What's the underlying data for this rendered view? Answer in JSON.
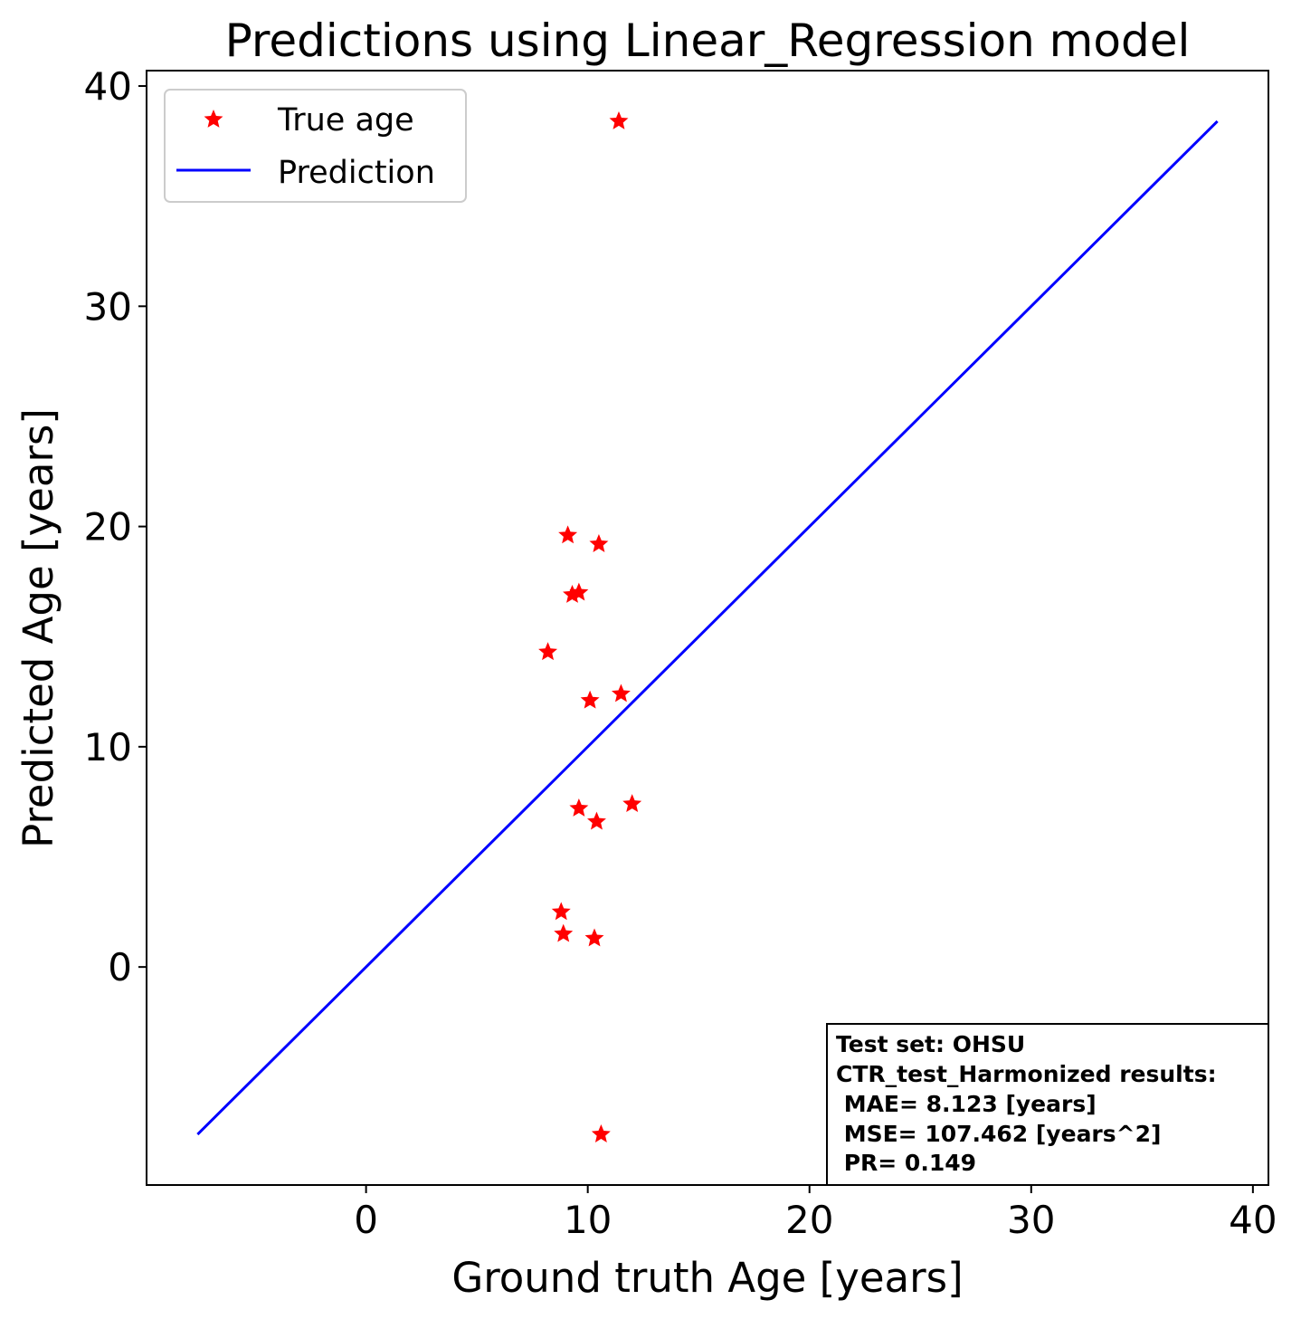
{
  "chart_data": {
    "type": "scatter",
    "title": "Predictions using Linear_Regression model",
    "xlabel": "Ground truth Age [years]",
    "ylabel": "Predicted Age [years]",
    "xlim": [
      -9.9,
      40.7
    ],
    "ylim": [
      -9.9,
      40.7
    ],
    "xticks": [
      "0",
      "10",
      "20",
      "30",
      "40"
    ],
    "yticks": [
      "0",
      "10",
      "20",
      "30",
      "40"
    ],
    "grid": false,
    "legend_position": "top-left",
    "series": [
      {
        "name": "True age",
        "kind": "scatter",
        "marker": "star",
        "color": "#ff0000",
        "points": [
          {
            "x": 11.4,
            "y": 38.4
          },
          {
            "x": 9.1,
            "y": 19.6
          },
          {
            "x": 10.5,
            "y": 19.2
          },
          {
            "x": 9.6,
            "y": 17.0
          },
          {
            "x": 9.3,
            "y": 16.9
          },
          {
            "x": 8.2,
            "y": 14.3
          },
          {
            "x": 11.5,
            "y": 12.4
          },
          {
            "x": 10.1,
            "y": 12.1
          },
          {
            "x": 12.0,
            "y": 7.4
          },
          {
            "x": 9.6,
            "y": 7.2
          },
          {
            "x": 10.4,
            "y": 6.6
          },
          {
            "x": 8.8,
            "y": 2.5
          },
          {
            "x": 8.9,
            "y": 1.5
          },
          {
            "x": 10.3,
            "y": 1.3
          },
          {
            "x": 10.6,
            "y": -7.6
          }
        ]
      },
      {
        "name": "Prediction",
        "kind": "line",
        "color": "#0000ff",
        "points": [
          {
            "x": -7.6,
            "y": -7.6
          },
          {
            "x": 38.4,
            "y": 38.4
          }
        ]
      }
    ],
    "annotation_lines": [
      "Test set: OHSU",
      "CTR_test_Harmonized results:",
      " MAE= 8.123 [years]",
      " MSE= 107.462 [years^2]",
      " PR= 0.149"
    ]
  }
}
